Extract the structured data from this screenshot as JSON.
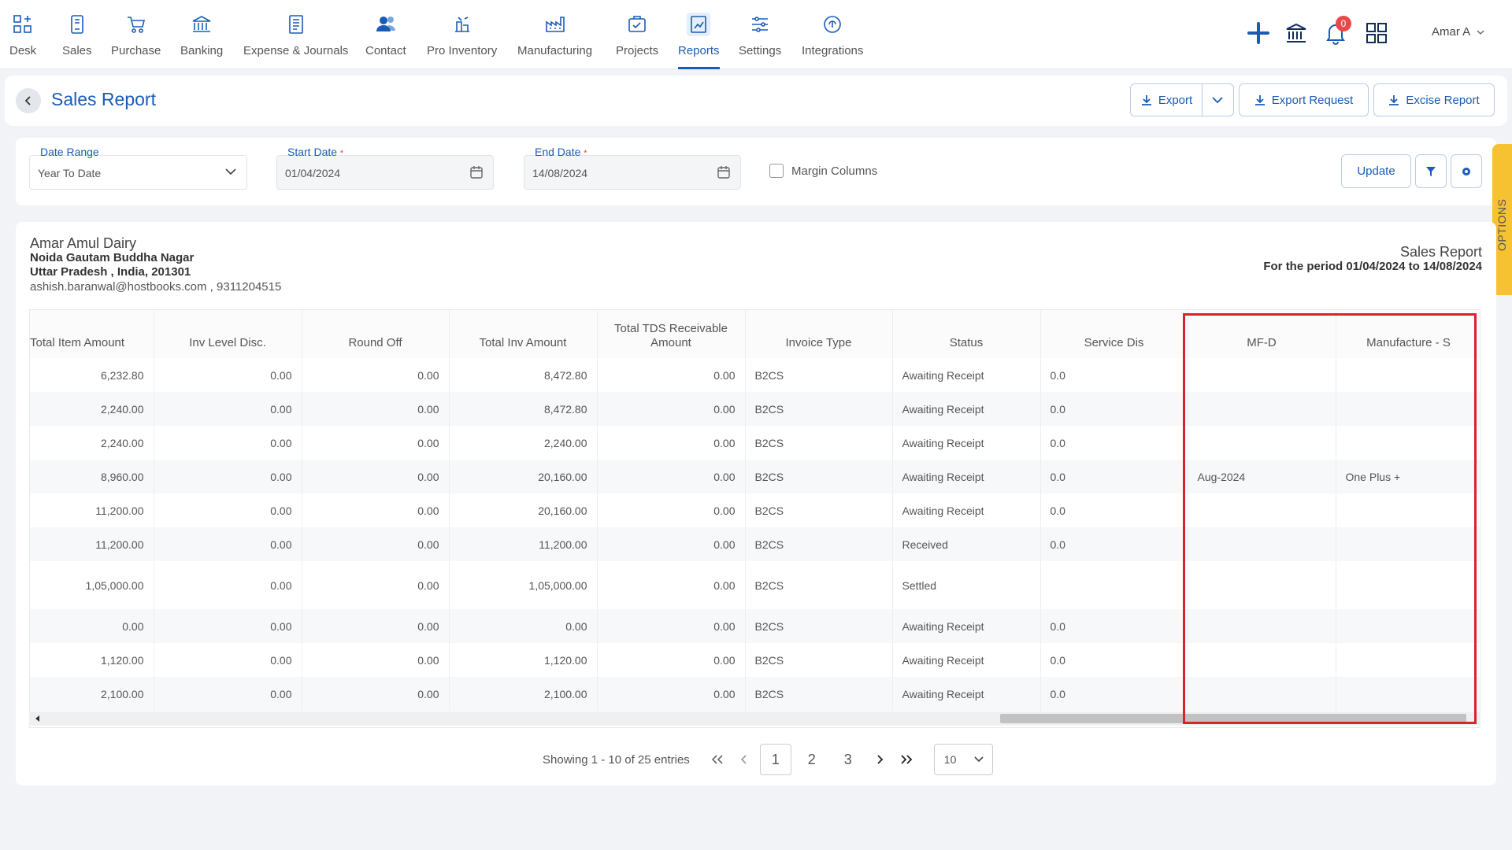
{
  "nav": {
    "items": [
      {
        "label": "Desk",
        "icon": "desk-icon"
      },
      {
        "label": "Sales",
        "icon": "sales-icon"
      },
      {
        "label": "Purchase",
        "icon": "purchase-icon"
      },
      {
        "label": "Banking",
        "icon": "banking-icon"
      },
      {
        "label": "Expense & Journals",
        "icon": "expense-icon"
      },
      {
        "label": "Contact",
        "icon": "contact-icon"
      },
      {
        "label": "Pro Inventory",
        "icon": "inventory-icon"
      },
      {
        "label": "Manufacturing",
        "icon": "manufacturing-icon"
      },
      {
        "label": "Projects",
        "icon": "projects-icon"
      },
      {
        "label": "Reports",
        "icon": "reports-icon"
      },
      {
        "label": "Settings",
        "icon": "settings-icon"
      },
      {
        "label": "Integrations",
        "icon": "integrations-icon"
      }
    ],
    "active": "Reports",
    "notification_count": "0",
    "user_name": "Amar A"
  },
  "header": {
    "title": "Sales Report",
    "export_label": "Export",
    "export_request_label": "Export Request",
    "excise_report_label": "Excise Report"
  },
  "filters": {
    "date_range_label": "Date Range",
    "date_range_value": "Year To Date",
    "start_date_label": "Start Date",
    "start_date_value": "01/04/2024",
    "end_date_label": "End Date",
    "end_date_value": "14/08/2024",
    "required_mark": "*",
    "margin_columns_label": "Margin Columns",
    "update_label": "Update",
    "options_label": "OPTIONS"
  },
  "company": {
    "name": "Amar Amul Dairy",
    "address1": "Noida Gautam Buddha Nagar",
    "address2": "Uttar Pradesh , India, 201301",
    "contact": "ashish.baranwal@hostbooks.com , 9311204515"
  },
  "report": {
    "title": "Sales Report",
    "period": "For the period 01/04/2024 to 14/08/2024"
  },
  "table": {
    "columns": [
      "Total Item Amount",
      "Inv Level Disc.",
      "Round Off",
      "Total Inv Amount",
      "Total TDS Receivable Amount",
      "Invoice Type",
      "Status",
      "Service Dis",
      "MF-D",
      "Manufacture - S"
    ],
    "rows": [
      [
        "6,232.80",
        "0.00",
        "0.00",
        "8,472.80",
        "0.00",
        "B2CS",
        "Awaiting Receipt",
        "0.0",
        "",
        ""
      ],
      [
        "2,240.00",
        "0.00",
        "0.00",
        "8,472.80",
        "0.00",
        "B2CS",
        "Awaiting Receipt",
        "0.0",
        "",
        ""
      ],
      [
        "2,240.00",
        "0.00",
        "0.00",
        "2,240.00",
        "0.00",
        "B2CS",
        "Awaiting Receipt",
        "0.0",
        "",
        ""
      ],
      [
        "8,960.00",
        "0.00",
        "0.00",
        "20,160.00",
        "0.00",
        "B2CS",
        "Awaiting Receipt",
        "0.0",
        "Aug-2024",
        "One Plus +"
      ],
      [
        "11,200.00",
        "0.00",
        "0.00",
        "20,160.00",
        "0.00",
        "B2CS",
        "Awaiting Receipt",
        "0.0",
        "",
        ""
      ],
      [
        "11,200.00",
        "0.00",
        "0.00",
        "11,200.00",
        "0.00",
        "B2CS",
        "Received",
        "0.0",
        "",
        ""
      ],
      [
        "1,05,000.00",
        "0.00",
        "0.00",
        "1,05,000.00",
        "0.00",
        "B2CS",
        "Settled",
        "",
        "",
        ""
      ],
      [
        "0.00",
        "0.00",
        "0.00",
        "0.00",
        "0.00",
        "B2CS",
        "Awaiting Receipt",
        "0.0",
        "",
        ""
      ],
      [
        "1,120.00",
        "0.00",
        "0.00",
        "1,120.00",
        "0.00",
        "B2CS",
        "Awaiting Receipt",
        "0.0",
        "",
        ""
      ],
      [
        "2,100.00",
        "0.00",
        "0.00",
        "2,100.00",
        "0.00",
        "B2CS",
        "Awaiting Receipt",
        "0.0",
        "",
        ""
      ]
    ]
  },
  "pagination": {
    "info": "Showing 1 - 10 of 25 entries",
    "pages": [
      "1",
      "2",
      "3"
    ],
    "current": "1",
    "page_size": "10"
  },
  "colors": {
    "accent": "#1a5cb5",
    "highlight": "#d8232a",
    "options_tab": "#f6c232"
  }
}
